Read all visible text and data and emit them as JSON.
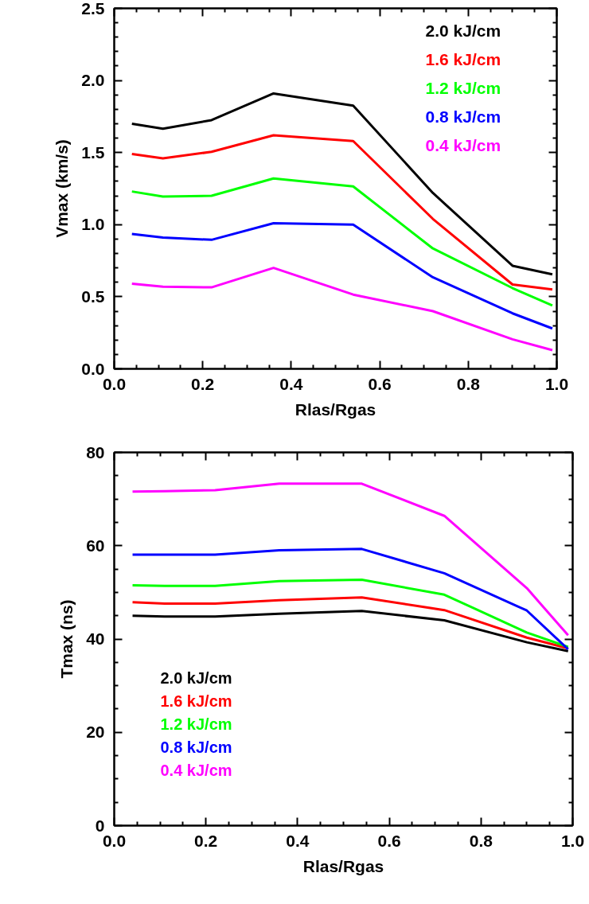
{
  "chart_data": [
    {
      "type": "line",
      "xlabel": "Rlas/Rgas",
      "ylabel": "Vmax (km/s)",
      "xlim": [
        0,
        1
      ],
      "ylim": [
        0,
        2.5
      ],
      "xticks": [
        {
          "value": 0,
          "label": "0.0"
        },
        {
          "value": 0.2,
          "label": "0.2"
        },
        {
          "value": 0.4,
          "label": "0.4"
        },
        {
          "value": 0.6,
          "label": "0.6"
        },
        {
          "value": 0.8,
          "label": "0.8"
        },
        {
          "value": 1,
          "label": "1.0"
        }
      ],
      "yticks": [
        {
          "value": 0,
          "label": "0.0"
        },
        {
          "value": 0.5,
          "label": "0.5"
        },
        {
          "value": 1,
          "label": "1.0"
        },
        {
          "value": 1.5,
          "label": "1.5"
        },
        {
          "value": 2,
          "label": "2.0"
        },
        {
          "value": 2.5,
          "label": "2.5"
        }
      ],
      "x": [
        0.04,
        0.11,
        0.22,
        0.36,
        0.54,
        0.72,
        0.9,
        0.99
      ],
      "legend": "top right",
      "line_style": "solid",
      "series": [
        {
          "name": "2.0 kJ/cm",
          "color": "#000000",
          "values": [
            1.7,
            1.665,
            1.725,
            1.91,
            1.825,
            1.22,
            0.715,
            0.655
          ]
        },
        {
          "name": "1.6 kJ/cm",
          "color": "#ff0000",
          "values": [
            1.49,
            1.46,
            1.505,
            1.62,
            1.58,
            1.04,
            0.585,
            0.55
          ]
        },
        {
          "name": "1.2 kJ/cm",
          "color": "#00ff00",
          "values": [
            1.23,
            1.195,
            1.2,
            1.32,
            1.265,
            0.835,
            0.56,
            0.44
          ]
        },
        {
          "name": "0.8 kJ/cm",
          "color": "#0000ff",
          "values": [
            0.935,
            0.91,
            0.895,
            1.01,
            1.0,
            0.635,
            0.385,
            0.28
          ]
        },
        {
          "name": "0.4 kJ/cm",
          "color": "#ff00ff",
          "values": [
            0.59,
            0.57,
            0.565,
            0.7,
            0.515,
            0.4,
            0.205,
            0.13
          ]
        }
      ]
    },
    {
      "type": "line",
      "xlabel": "Rlas/Rgas",
      "ylabel": "Tmax (ns)",
      "xlim": [
        0,
        1
      ],
      "ylim": [
        0,
        80
      ],
      "xticks": [
        {
          "value": 0,
          "label": "0.0"
        },
        {
          "value": 0.2,
          "label": "0.2"
        },
        {
          "value": 0.4,
          "label": "0.4"
        },
        {
          "value": 0.6,
          "label": "0.6"
        },
        {
          "value": 0.8,
          "label": "0.8"
        },
        {
          "value": 1,
          "label": "1.0"
        }
      ],
      "yticks": [
        0,
        20,
        40,
        60,
        80
      ],
      "x": [
        0.04,
        0.11,
        0.22,
        0.36,
        0.54,
        0.72,
        0.9,
        0.99
      ],
      "legend": "left",
      "line_style": "solid",
      "series": [
        {
          "name": "2.0 kJ/cm",
          "color": "#000000",
          "values": [
            45.0,
            44.8,
            44.8,
            45.4,
            46.0,
            44.0,
            39.3,
            37.4
          ]
        },
        {
          "name": "1.6 kJ/cm",
          "color": "#ff0000",
          "values": [
            47.9,
            47.6,
            47.6,
            48.3,
            48.9,
            46.2,
            40.3,
            38.0
          ]
        },
        {
          "name": "1.2 kJ/cm",
          "color": "#00ff00",
          "values": [
            51.5,
            51.4,
            51.4,
            52.4,
            52.7,
            49.5,
            41.4,
            38.3
          ]
        },
        {
          "name": "0.8 kJ/cm",
          "color": "#0000ff",
          "values": [
            58.1,
            58.1,
            58.1,
            59.0,
            59.3,
            54.1,
            46.1,
            37.8
          ]
        },
        {
          "name": "0.4 kJ/cm",
          "color": "#ff00ff",
          "values": [
            71.6,
            71.7,
            71.9,
            73.3,
            73.3,
            66.4,
            50.9,
            40.8
          ]
        }
      ]
    }
  ]
}
